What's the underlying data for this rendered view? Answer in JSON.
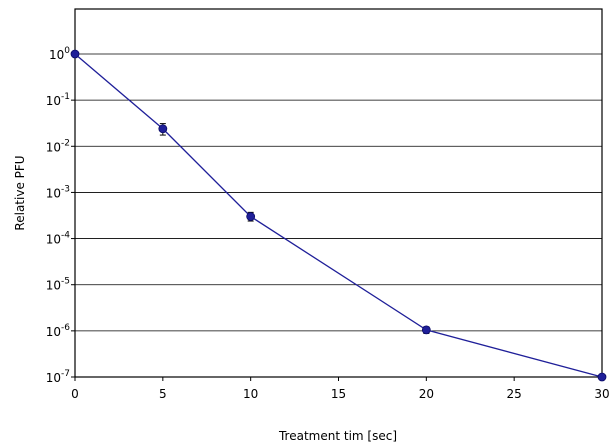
{
  "chart_data": {
    "type": "line",
    "xlabel": "Treatment tim [sec]",
    "ylabel": "Relative PFU",
    "xlim": [
      0,
      30
    ],
    "ylim": [
      1e-07,
      10
    ],
    "y_scale": "log",
    "grid": "horizontal",
    "x_ticks": [
      "0",
      "5",
      "10",
      "15",
      "20",
      "25",
      "30"
    ],
    "y_ticks": [
      {
        "base": "10",
        "exp": "0"
      },
      {
        "base": "10",
        "exp": "-1"
      },
      {
        "base": "10",
        "exp": "-2"
      },
      {
        "base": "10",
        "exp": "-3"
      },
      {
        "base": "10",
        "exp": "-4"
      },
      {
        "base": "10",
        "exp": "-5"
      },
      {
        "base": "10",
        "exp": "-6"
      },
      {
        "base": "10",
        "exp": "-7"
      }
    ],
    "series": [
      {
        "color": "#1f1f99",
        "points": [
          {
            "x": 0,
            "y": 1.0
          },
          {
            "x": 5,
            "y": 0.024,
            "err_low": 0.0175,
            "err_high": 0.031
          },
          {
            "x": 10,
            "y": 0.0003,
            "err_low": 0.00024,
            "err_high": 0.00037
          },
          {
            "x": 20,
            "y": 1.05e-06,
            "err_low": 8.8e-07,
            "err_high": 1.22e-06
          },
          {
            "x": 30,
            "y": 1e-07
          }
        ]
      }
    ]
  }
}
